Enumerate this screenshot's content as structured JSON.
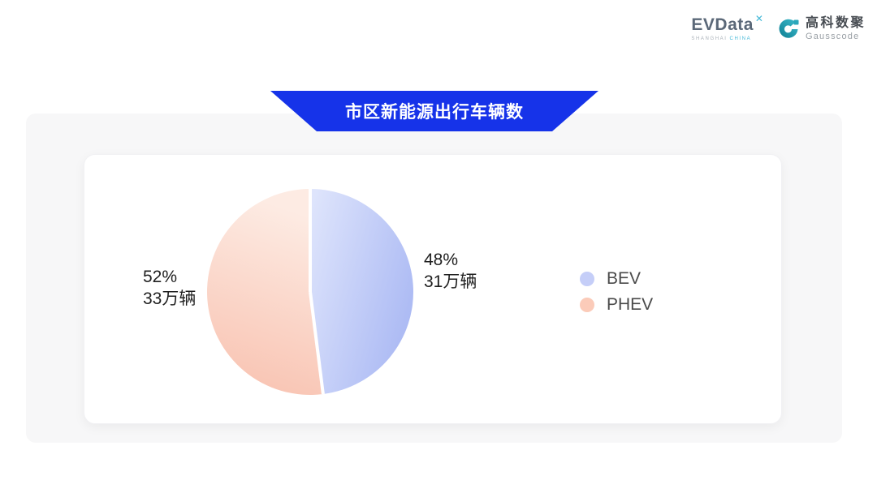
{
  "header": {
    "evdata_logo": {
      "name": "EVData",
      "mark": "✕",
      "subtext_1": "SHANGHAI",
      "subtext_2": "CHINA"
    },
    "gausscode_logo": {
      "cn_name": "高科数聚",
      "en_name": "Gausscode"
    }
  },
  "banner": {
    "title": "市区新能源出行车辆数"
  },
  "colors": {
    "banner_blue": "#1633e9",
    "panel_gray": "#f7f7f8",
    "bev_gradient_start": "#e0e6fc",
    "bev_gradient_end": "#adbbf4",
    "phev_gradient_start": "#fdebe3",
    "phev_gradient_end": "#f8c0ae",
    "legend_bev_dot": "#c5cef8",
    "legend_phev_dot": "#fbcbb9",
    "brand_teal_dark": "#0f7f93",
    "brand_teal_light": "#3dbccd"
  },
  "chart_data": {
    "type": "pie",
    "title": "市区新能源出行车辆数",
    "unit": "万辆",
    "legend_position": "right",
    "start_angle": "top",
    "direction": "clockwise",
    "series": [
      {
        "name": "BEV",
        "value": 31,
        "percent": 48,
        "percent_label": "48%",
        "value_label": "31万辆"
      },
      {
        "name": "PHEV",
        "value": 33,
        "percent": 52,
        "percent_label": "52%",
        "value_label": "33万辆"
      }
    ]
  }
}
